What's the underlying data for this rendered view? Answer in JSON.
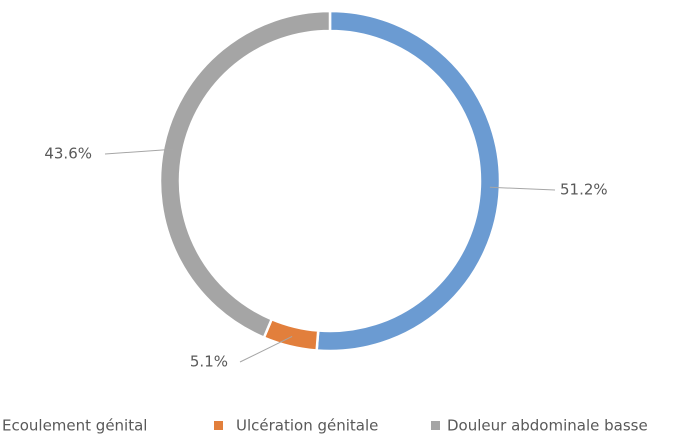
{
  "chart_data": {
    "type": "donut",
    "series": [
      {
        "name": "Ecoulement génital",
        "color": "#6b9bd2",
        "values": [
          51.2
        ],
        "value_labels": [
          "51.2%"
        ]
      },
      {
        "name": "Ulcération génitale",
        "color": "#e27f3c",
        "values": [
          5.1
        ],
        "value_labels": [
          "5.1%"
        ]
      },
      {
        "name": "Douleur abdominale basse",
        "color": "#a5a5a5",
        "values": [
          43.6
        ],
        "value_labels": [
          "43.6%"
        ]
      }
    ],
    "legend": "bottom"
  }
}
